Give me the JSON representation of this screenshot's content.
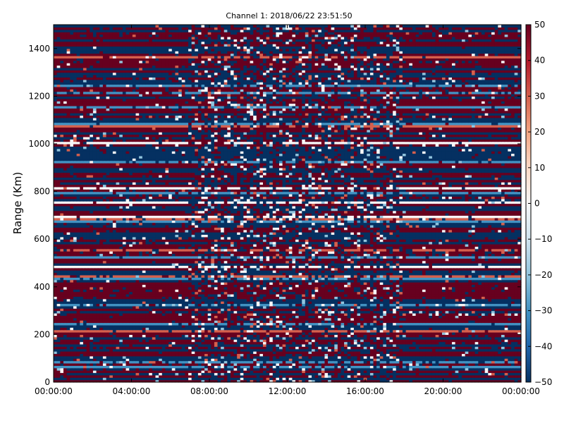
{
  "chart_data": {
    "type": "heatmap",
    "title": "Channel 1: 2018/06/22 23:51:50",
    "xlabel": "",
    "ylabel": "Range (Km)",
    "xlim": [
      "00:00:00",
      "24:00:00"
    ],
    "ylim": [
      0,
      1500
    ],
    "x_ticks": [
      "00:00:00",
      "04:00:00",
      "08:00:00",
      "12:00:00",
      "16:00:00",
      "20:00:00",
      "00:00:00"
    ],
    "y_ticks": [
      0,
      200,
      400,
      600,
      800,
      1000,
      1200,
      1400
    ],
    "colorbar": {
      "min": -50,
      "max": 50,
      "ticks": [
        50,
        40,
        30,
        20,
        10,
        0,
        -10,
        -20,
        -30,
        -40,
        -50
      ],
      "colormap": "RdBu_r",
      "colors": [
        "#053061",
        "#2166ac",
        "#4393c3",
        "#92c5de",
        "#d1e5f0",
        "#f7f7f7",
        "#fddbc7",
        "#f4a582",
        "#d6604d",
        "#b2182b",
        "#67001f"
      ]
    },
    "segments": [
      {
        "start": "00:00:00",
        "end": "06:55:00",
        "pattern": "horizontal bands, mostly dark red and dark blue"
      },
      {
        "start": "06:55:00",
        "end": "17:55:00",
        "pattern": "speckled, mostly dark blue and dark red"
      },
      {
        "start": "17:55:00",
        "end": "24:00:00",
        "pattern": "horizontal bands, mostly dark red and dark blue"
      }
    ],
    "grid": false,
    "legend": "colorbar on right"
  }
}
